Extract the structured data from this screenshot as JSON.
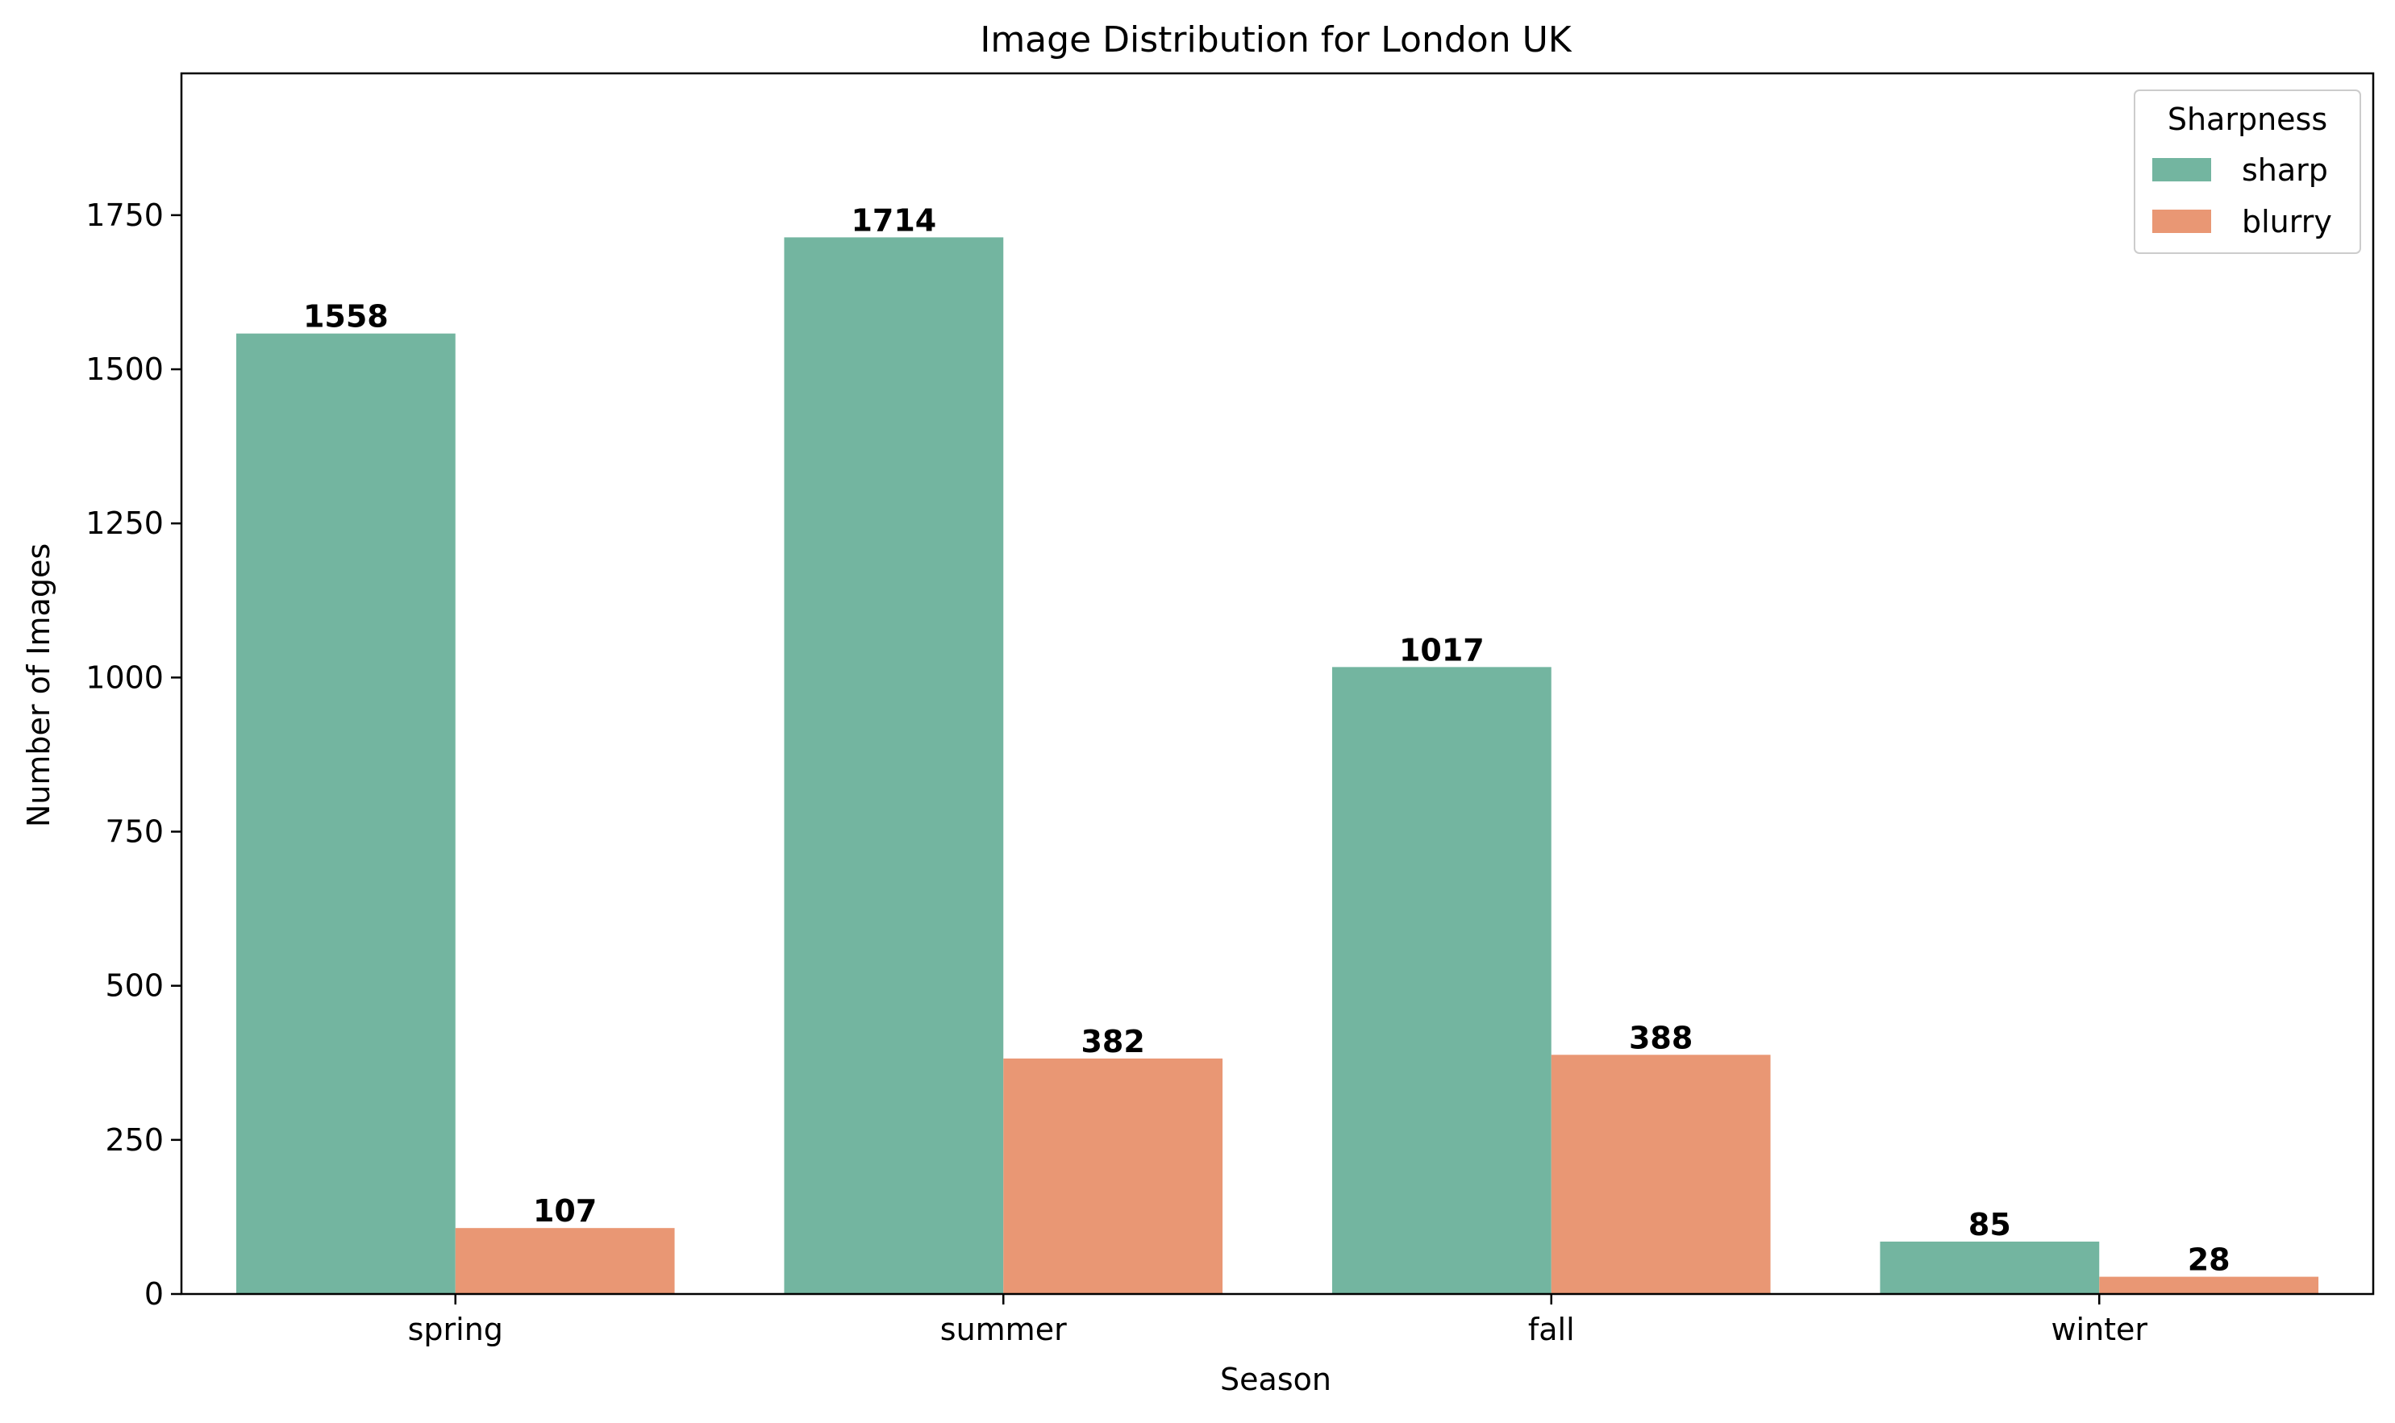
{
  "chart_data": {
    "type": "bar",
    "title": "Image Distribution for London UK",
    "xlabel": "Season",
    "ylabel": "Number of Images",
    "categories": [
      "spring",
      "summer",
      "fall",
      "winter"
    ],
    "series": [
      {
        "name": "sharp",
        "color": "#73b5a0",
        "values": [
          1558,
          1714,
          1017,
          85
        ]
      },
      {
        "name": "blurry",
        "color": "#e99774",
        "values": [
          107,
          382,
          388,
          28
        ]
      }
    ],
    "ylim": [
      0,
      1980
    ],
    "yticks": [
      0,
      250,
      500,
      750,
      1000,
      1250,
      1500,
      1750
    ],
    "legend": {
      "title": "Sharpness",
      "placement": "top-right"
    },
    "grid": false
  }
}
